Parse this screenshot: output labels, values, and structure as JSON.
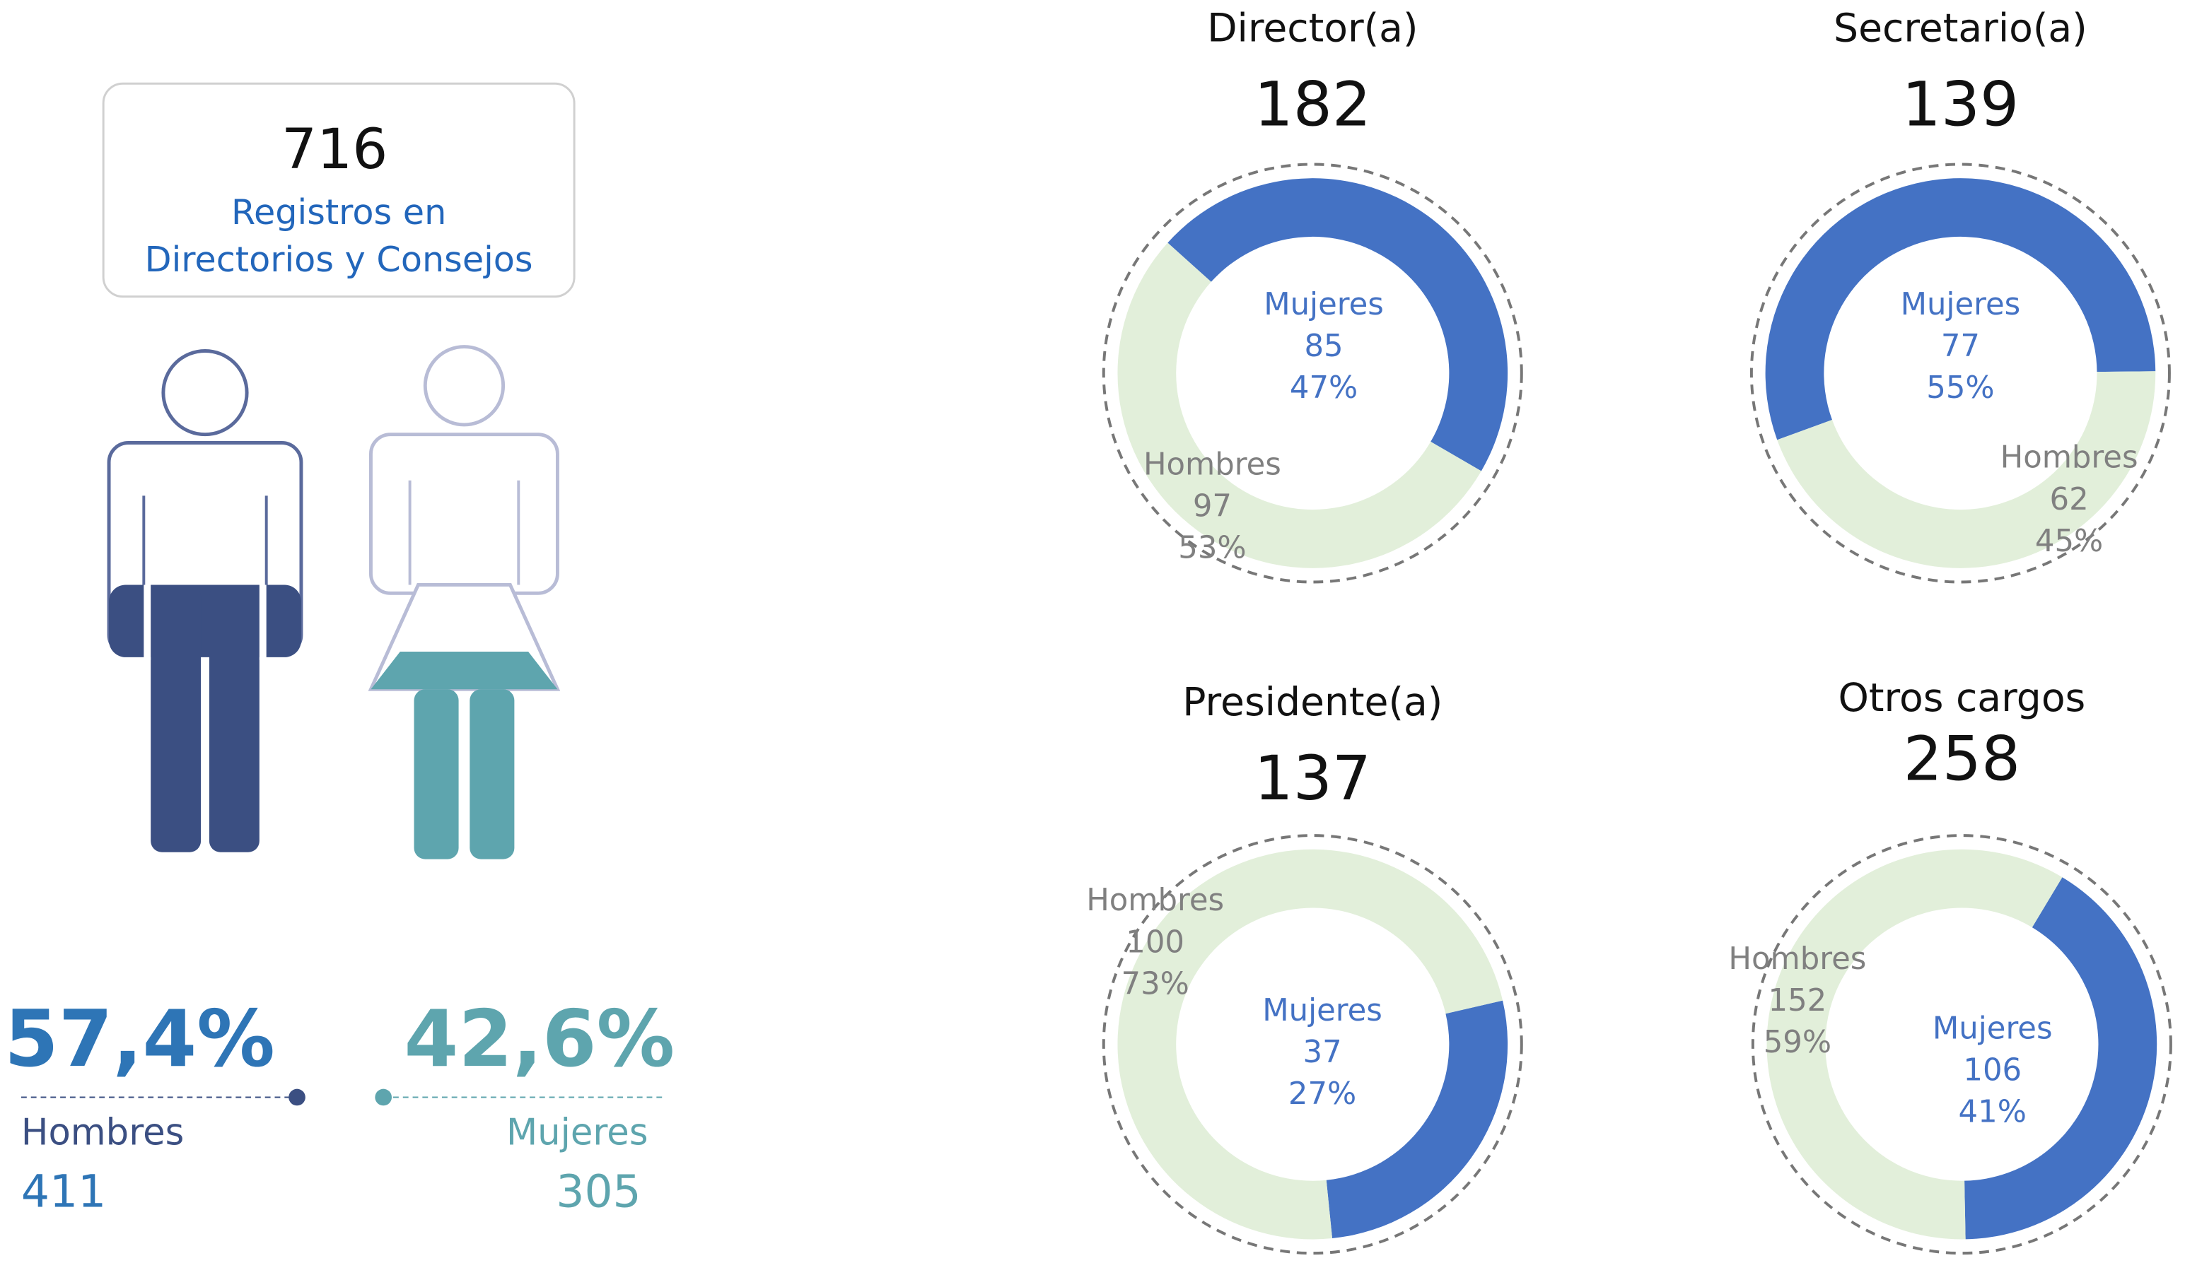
{
  "summary": {
    "total": 716,
    "total_label": [
      "Registros en",
      "Directorios y Consejos"
    ],
    "groups": [
      {
        "name": "Hombres",
        "percent_label": "57,4%",
        "count": 411
      },
      {
        "name": "Mujeres",
        "percent_label": "42,6%",
        "count": 305
      }
    ]
  },
  "chart_data": [
    {
      "type": "pie",
      "title": "Director(a)",
      "total": 182,
      "categories": [
        "Mujeres",
        "Hombres"
      ],
      "values": [
        85,
        97
      ],
      "percent_labels": [
        "47%",
        "53%"
      ],
      "colors": [
        "#4472c4",
        "#e2efda"
      ]
    },
    {
      "type": "pie",
      "title": "Secretario(a)",
      "total": 139,
      "categories": [
        "Mujeres",
        "Hombres"
      ],
      "values": [
        77,
        62
      ],
      "percent_labels": [
        "55%",
        "45%"
      ],
      "colors": [
        "#4472c4",
        "#e2efda"
      ]
    },
    {
      "type": "pie",
      "title": "Presidente(a)",
      "total": 137,
      "categories": [
        "Mujeres",
        "Hombres"
      ],
      "values": [
        37,
        100
      ],
      "percent_labels": [
        "27%",
        "73%"
      ],
      "colors": [
        "#4472c4",
        "#e2efda"
      ]
    },
    {
      "type": "pie",
      "title": "Otros cargos",
      "total": 258,
      "categories": [
        "Mujeres",
        "Hombres"
      ],
      "values": [
        106,
        152
      ],
      "percent_labels": [
        "41%",
        "59%"
      ],
      "colors": [
        "#4472c4",
        "#e2efda"
      ]
    }
  ]
}
